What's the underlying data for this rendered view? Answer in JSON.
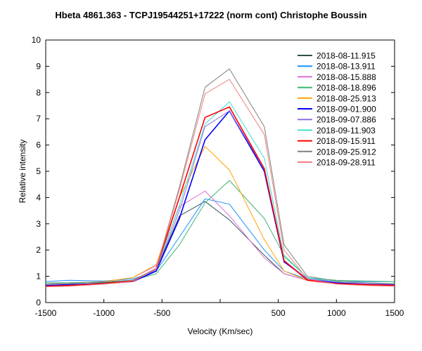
{
  "chart_data": {
    "type": "line",
    "title": "Hbeta 4861.363 - TCPJ19544251+17222 (norm cont)   Christophe Boussin",
    "xlabel": "Velocity (Km/sec)",
    "ylabel": "Relative intensity",
    "xlim": [
      -1500,
      1500
    ],
    "ylim": [
      0,
      10
    ],
    "xticks": [
      -1500,
      -1000,
      -500,
      500,
      1000,
      1500
    ],
    "xtick_labels": [
      "-1500",
      "-1000",
      "-500",
      "500",
      "1000",
      "1500"
    ],
    "yticks": [
      0,
      1,
      2,
      3,
      4,
      5,
      6,
      7,
      8,
      9,
      10
    ],
    "ytick_labels": [
      "0",
      "1",
      "2",
      "3",
      "4",
      "5",
      "6",
      "7",
      "8",
      "9",
      "10"
    ],
    "grid": false,
    "legend": "top-right",
    "x": [
      -1500,
      -1300,
      -1000,
      -750,
      -550,
      -350,
      -130,
      80,
      380,
      550,
      750,
      1000,
      1250,
      1500
    ],
    "series": [
      {
        "name": "2018-08-11.915",
        "color": "#2f4f4f",
        "values": [
          0.7,
          0.75,
          0.75,
          0.85,
          1.25,
          3.3,
          3.85,
          3.15,
          1.8,
          1.1,
          0.85,
          0.75,
          0.7,
          0.72
        ]
      },
      {
        "name": "2018-08-13.911",
        "color": "#1e90ff",
        "values": [
          0.8,
          0.85,
          0.82,
          0.9,
          1.2,
          2.5,
          3.95,
          3.75,
          2.0,
          1.2,
          0.9,
          0.8,
          0.8,
          0.8
        ]
      },
      {
        "name": "2018-08-15.888",
        "color": "#da70d6",
        "values": [
          0.7,
          0.75,
          0.8,
          0.95,
          1.4,
          3.65,
          4.25,
          3.3,
          1.7,
          1.1,
          0.85,
          0.72,
          0.68,
          0.65
        ]
      },
      {
        "name": "2018-08-18.896",
        "color": "#3cb371",
        "values": [
          0.75,
          0.75,
          0.8,
          0.85,
          1.1,
          2.2,
          3.8,
          4.65,
          3.2,
          1.8,
          0.95,
          0.85,
          0.82,
          0.8
        ]
      },
      {
        "name": "2018-08-25.913",
        "color": "#ffa500",
        "values": [
          0.7,
          0.72,
          0.8,
          0.95,
          1.45,
          4.0,
          5.95,
          5.05,
          2.4,
          1.2,
          0.85,
          0.75,
          0.7,
          0.7
        ]
      },
      {
        "name": "2018-09-01.900",
        "color": "#0000ff",
        "values": [
          0.65,
          0.68,
          0.72,
          0.8,
          1.2,
          3.2,
          6.2,
          7.3,
          5.0,
          1.55,
          0.9,
          0.75,
          0.7,
          0.68
        ]
      },
      {
        "name": "2018-09-07.886",
        "color": "#9370db",
        "values": [
          0.7,
          0.72,
          0.78,
          0.85,
          1.25,
          3.5,
          6.7,
          7.3,
          5.1,
          1.6,
          0.9,
          0.78,
          0.72,
          0.7
        ]
      },
      {
        "name": "2018-09-11.903",
        "color": "#40e0d0",
        "values": [
          0.7,
          0.72,
          0.78,
          0.85,
          1.3,
          3.7,
          6.8,
          7.65,
          5.5,
          1.75,
          0.95,
          0.8,
          0.75,
          0.72
        ]
      },
      {
        "name": "2018-09-15.911",
        "color": "#ff0000",
        "values": [
          0.62,
          0.65,
          0.72,
          0.82,
          1.3,
          4.0,
          7.05,
          7.45,
          5.1,
          1.6,
          0.85,
          0.72,
          0.68,
          0.65
        ]
      },
      {
        "name": "2018-09-25.912",
        "color": "#808080",
        "values": [
          0.7,
          0.72,
          0.78,
          0.85,
          1.3,
          4.4,
          8.2,
          8.9,
          6.7,
          2.2,
          1.0,
          0.82,
          0.75,
          0.72
        ]
      },
      {
        "name": "2018-09-28.911",
        "color": "#f08080",
        "values": [
          0.6,
          0.62,
          0.7,
          0.8,
          1.3,
          4.3,
          7.95,
          8.5,
          6.4,
          2.0,
          0.9,
          0.7,
          0.65,
          0.62
        ]
      }
    ]
  }
}
